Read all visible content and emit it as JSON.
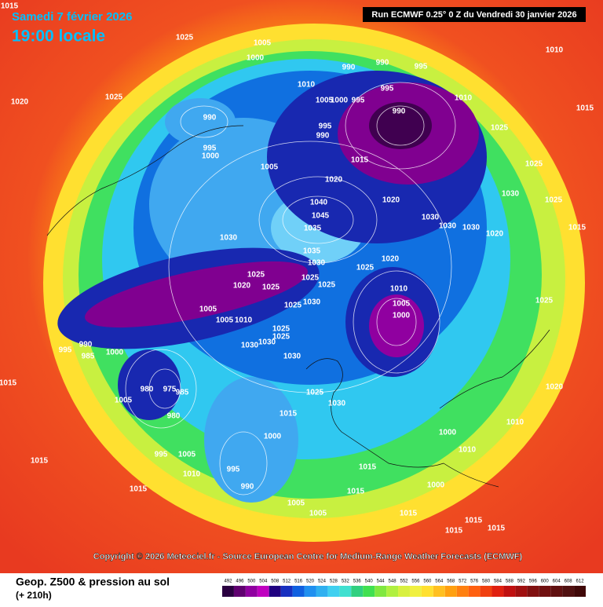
{
  "header": {
    "date": "Samedi 7 février 2026",
    "time": "19:00 locale",
    "run": "Run ECMWF 0.25° 0 Z du Vendredi 30 janvier 2026"
  },
  "copyright": "Copyright © 2026 Meteociel.fr - Source European Centre for Medium-Range Weather Forecasts (ECMWF)",
  "legend": {
    "title": "Geop. Z500 & pression au sol",
    "lead": "(+ 210h)",
    "scale": [
      492,
      496,
      500,
      504,
      508,
      512,
      516,
      520,
      524,
      528,
      532,
      536,
      540,
      544,
      548,
      552,
      556,
      560,
      564,
      568,
      572,
      576,
      580,
      584,
      588,
      592,
      596,
      600,
      604,
      608,
      612
    ]
  },
  "isobar_labels": [
    1015,
    1025,
    1005,
    1000,
    1010,
    990,
    995,
    990,
    995,
    1010,
    1005,
    1000,
    995,
    990,
    1010,
    1020,
    1025,
    990,
    1015,
    995,
    990,
    1025,
    995,
    1000,
    1015,
    1005,
    1020,
    1025,
    1030,
    1040,
    1020,
    1045,
    1025,
    1030,
    1030,
    1030,
    1035,
    1015,
    1030,
    1020,
    1035,
    1030,
    1020,
    1025,
    1025,
    1025,
    1020,
    1025,
    1025,
    1010,
    1005,
    1000,
    1025,
    1030,
    1025,
    1005,
    1005,
    1010,
    1025,
    1025,
    1030,
    1030,
    995,
    990,
    985,
    1000,
    1030,
    1015,
    975,
    985,
    980,
    1025,
    1030,
    1005,
    980,
    1015,
    1020,
    1010,
    1000,
    1000,
    1010,
    995,
    1005,
    1015,
    1010,
    995,
    990,
    1015,
    1015,
    1000,
    1015,
    1005,
    1005,
    1015,
    1015,
    1015,
    1015
  ]
}
